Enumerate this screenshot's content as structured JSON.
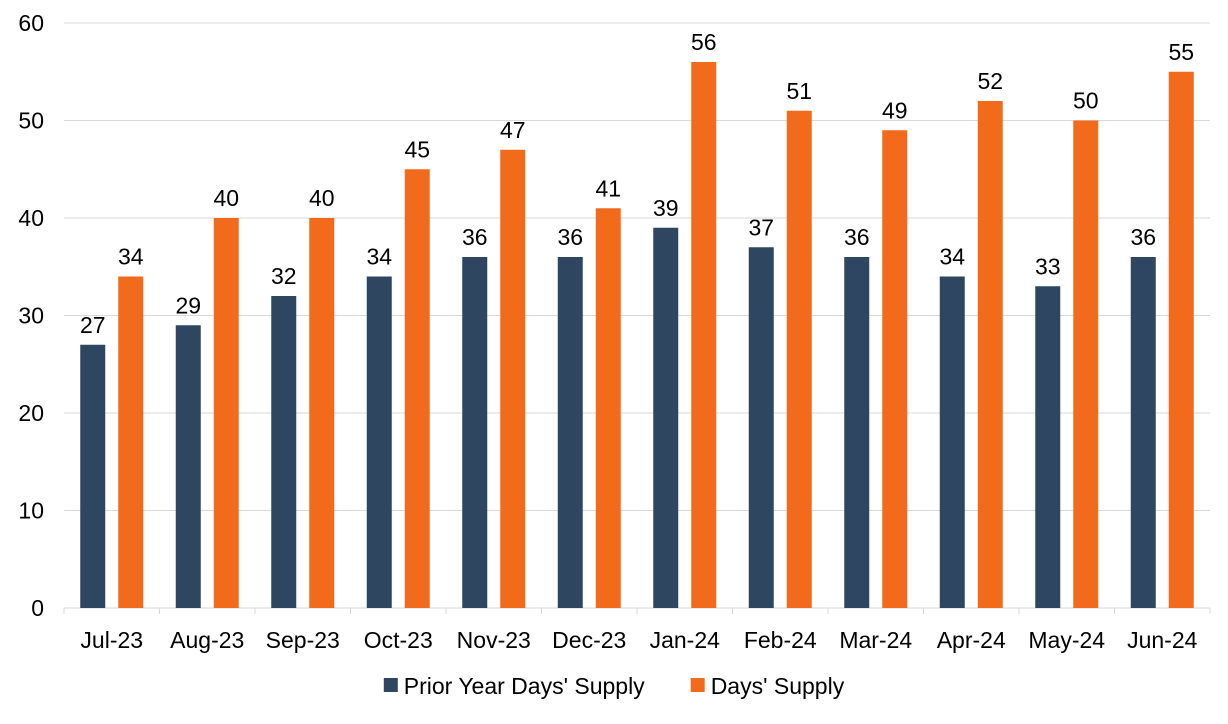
{
  "chart_data": {
    "type": "bar",
    "categories": [
      "Jul-23",
      "Aug-23",
      "Sep-23",
      "Oct-23",
      "Nov-23",
      "Dec-23",
      "Jan-24",
      "Feb-24",
      "Mar-24",
      "Apr-24",
      "May-24",
      "Jun-24"
    ],
    "series": [
      {
        "name": "Prior Year Days' Supply",
        "color": "#2e4660",
        "values": [
          27,
          29,
          32,
          34,
          36,
          36,
          39,
          37,
          36,
          34,
          33,
          36
        ]
      },
      {
        "name": "Days' Supply",
        "color": "#f26b1d",
        "values": [
          34,
          40,
          40,
          45,
          47,
          41,
          56,
          51,
          49,
          52,
          50,
          55
        ]
      }
    ],
    "title": "",
    "xlabel": "",
    "ylabel": "",
    "ylim": [
      0,
      60
    ],
    "yticks": [
      0,
      10,
      20,
      30,
      40,
      50,
      60
    ],
    "grid": true,
    "legend_position": "bottom",
    "data_labels": true
  }
}
